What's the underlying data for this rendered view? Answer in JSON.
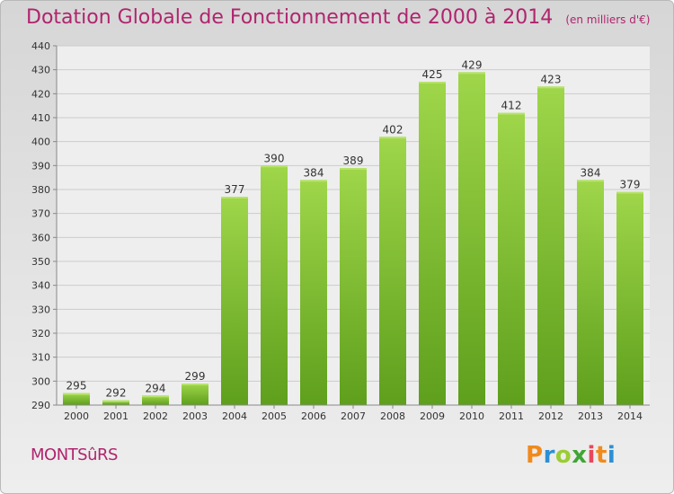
{
  "chart_data": {
    "type": "bar",
    "title": "Dotation Globale de Fonctionnement de 2000 à 2014",
    "unit": "(en milliers d'€)",
    "categories": [
      "2000",
      "2001",
      "2002",
      "2003",
      "2004",
      "2005",
      "2006",
      "2007",
      "2008",
      "2009",
      "2010",
      "2011",
      "2012",
      "2013",
      "2014"
    ],
    "values": [
      295,
      292,
      294,
      299,
      377,
      390,
      384,
      389,
      402,
      425,
      429,
      412,
      423,
      384,
      379
    ],
    "ylim": [
      290,
      440
    ],
    "yticks": [
      290,
      300,
      310,
      320,
      330,
      340,
      350,
      360,
      370,
      380,
      390,
      400,
      410,
      420,
      430,
      440
    ],
    "grid": true,
    "bar_color": "#7dbe37"
  },
  "footer": {
    "town": "MONTSûRS",
    "logo_letters": [
      "P",
      "r",
      "o",
      "x",
      "i",
      "t",
      "i"
    ],
    "logo_colors": [
      "#f08a1c",
      "#2c8fd4",
      "#9acd32",
      "#3fa535",
      "#e9465c",
      "#f08a1c",
      "#2c8fd4"
    ]
  }
}
